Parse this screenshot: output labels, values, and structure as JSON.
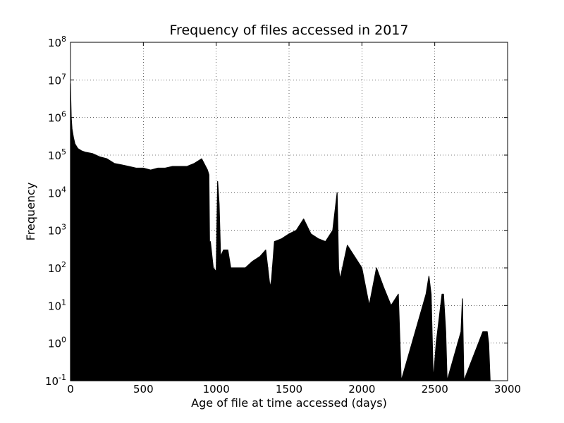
{
  "chart_data": {
    "type": "area",
    "title": "Frequency of files accessed in 2017",
    "xlabel": "Age of file at time accessed (days)",
    "ylabel": "Frequency",
    "x_scale": "linear",
    "y_scale": "log",
    "xlim": [
      0,
      3000
    ],
    "ylim": [
      0.1,
      100000000
    ],
    "x_ticks": [
      {
        "value": 0,
        "label": "0"
      },
      {
        "value": 500,
        "label": "500"
      },
      {
        "value": 1000,
        "label": "1000"
      },
      {
        "value": 1500,
        "label": "1500"
      },
      {
        "value": 2000,
        "label": "2000"
      },
      {
        "value": 2500,
        "label": "2500"
      },
      {
        "value": 3000,
        "label": "3000"
      }
    ],
    "y_ticks": [
      {
        "value": 0.1,
        "base": "10",
        "exp": "-1"
      },
      {
        "value": 1,
        "base": "10",
        "exp": "0"
      },
      {
        "value": 10,
        "base": "10",
        "exp": "1"
      },
      {
        "value": 100,
        "base": "10",
        "exp": "2"
      },
      {
        "value": 1000,
        "base": "10",
        "exp": "3"
      },
      {
        "value": 10000,
        "base": "10",
        "exp": "4"
      },
      {
        "value": 100000,
        "base": "10",
        "exp": "5"
      },
      {
        "value": 1000000,
        "base": "10",
        "exp": "6"
      },
      {
        "value": 10000000,
        "base": "10",
        "exp": "7"
      },
      {
        "value": 100000000,
        "base": "10",
        "exp": "8"
      }
    ],
    "grid": true,
    "series_color": "#000000",
    "points": [
      [
        0,
        8000000
      ],
      [
        2,
        3000000
      ],
      [
        5,
        1000000
      ],
      [
        10,
        500000
      ],
      [
        20,
        300000
      ],
      [
        30,
        200000
      ],
      [
        50,
        150000
      ],
      [
        75,
        130000
      ],
      [
        100,
        120000
      ],
      [
        150,
        110000
      ],
      [
        200,
        90000
      ],
      [
        250,
        80000
      ],
      [
        300,
        60000
      ],
      [
        350,
        55000
      ],
      [
        400,
        50000
      ],
      [
        450,
        45000
      ],
      [
        500,
        45000
      ],
      [
        550,
        40000
      ],
      [
        600,
        45000
      ],
      [
        650,
        45000
      ],
      [
        700,
        50000
      ],
      [
        750,
        50000
      ],
      [
        800,
        50000
      ],
      [
        850,
        60000
      ],
      [
        900,
        80000
      ],
      [
        940,
        40000
      ],
      [
        950,
        30000
      ],
      [
        955,
        200
      ],
      [
        960,
        500
      ],
      [
        980,
        100
      ],
      [
        1000,
        80
      ],
      [
        1010,
        20000
      ],
      [
        1020,
        5000
      ],
      [
        1030,
        200
      ],
      [
        1050,
        300
      ],
      [
        1080,
        300
      ],
      [
        1100,
        100
      ],
      [
        1150,
        100
      ],
      [
        1200,
        100
      ],
      [
        1250,
        150
      ],
      [
        1300,
        200
      ],
      [
        1340,
        300
      ],
      [
        1370,
        30
      ],
      [
        1380,
        50
      ],
      [
        1400,
        500
      ],
      [
        1450,
        600
      ],
      [
        1500,
        800
      ],
      [
        1550,
        1000
      ],
      [
        1600,
        2000
      ],
      [
        1650,
        800
      ],
      [
        1700,
        600
      ],
      [
        1750,
        500
      ],
      [
        1800,
        1000
      ],
      [
        1830,
        10000
      ],
      [
        1840,
        100
      ],
      [
        1850,
        50
      ],
      [
        1900,
        400
      ],
      [
        1950,
        200
      ],
      [
        2000,
        100
      ],
      [
        2050,
        10
      ],
      [
        2100,
        100
      ],
      [
        2150,
        30
      ],
      [
        2200,
        10
      ],
      [
        2250,
        20
      ],
      [
        2270,
        0.1
      ],
      [
        2440,
        20
      ],
      [
        2460,
        60
      ],
      [
        2475,
        20
      ],
      [
        2490,
        0.1
      ],
      [
        2510,
        1
      ],
      [
        2550,
        20
      ],
      [
        2560,
        20
      ],
      [
        2575,
        2
      ],
      [
        2585,
        0.1
      ],
      [
        2680,
        2
      ],
      [
        2690,
        15
      ],
      [
        2700,
        0.1
      ],
      [
        2830,
        2
      ],
      [
        2860,
        2
      ],
      [
        2870,
        1
      ],
      [
        2880,
        0.1
      ]
    ]
  }
}
